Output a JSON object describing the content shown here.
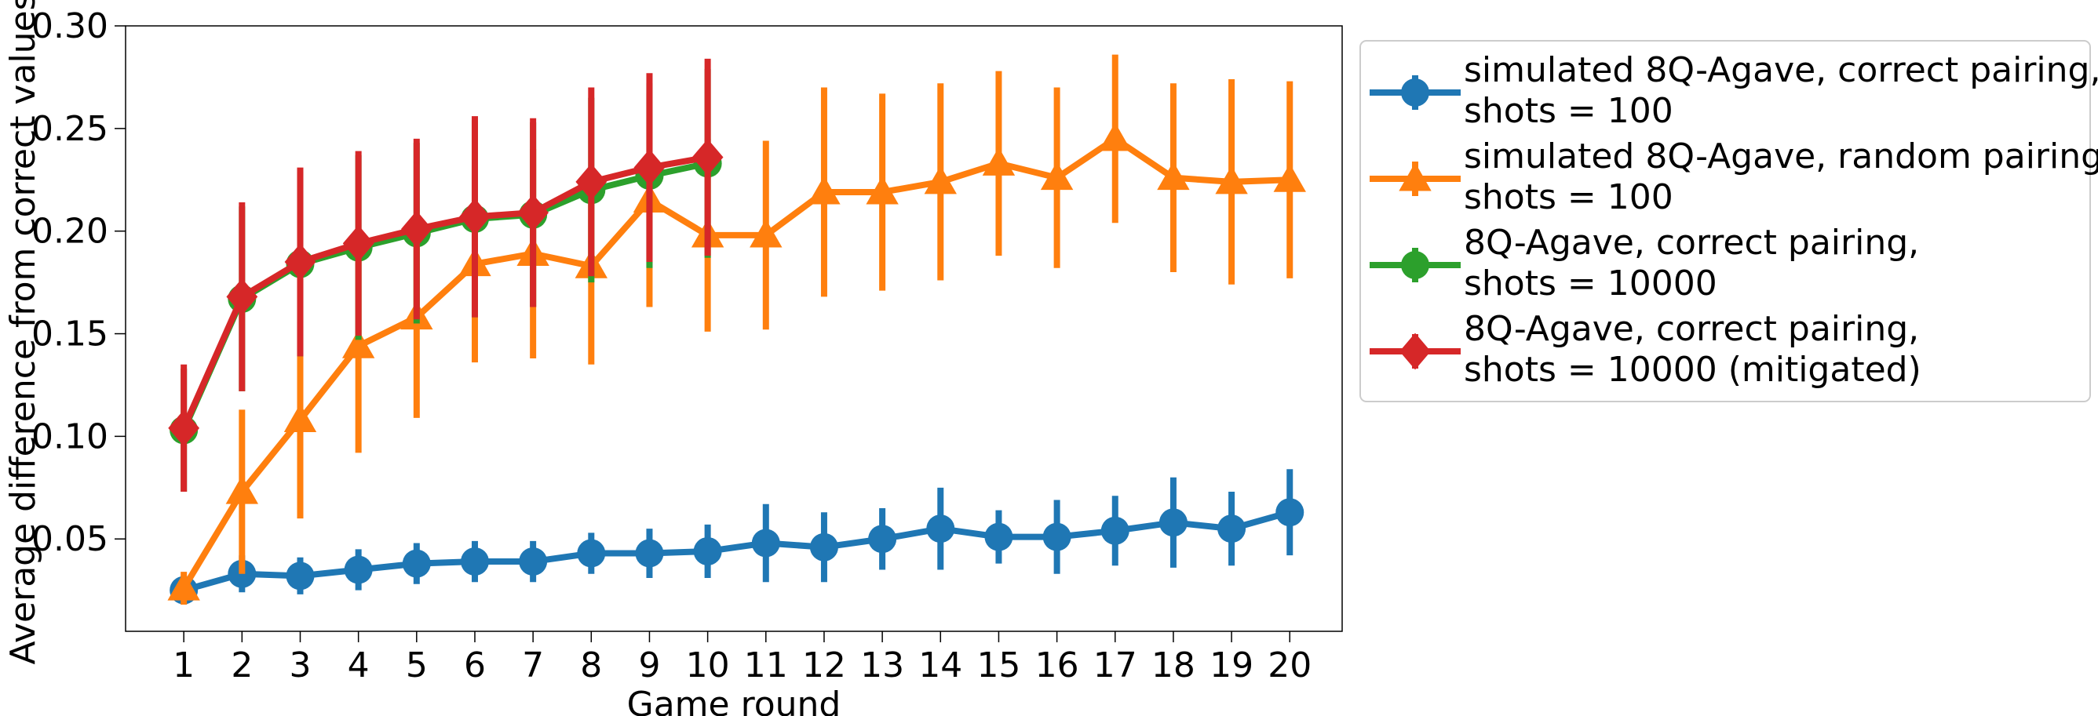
{
  "chart_data": {
    "type": "line",
    "xlabel": "Game round",
    "ylabel": "Average difference from correct values",
    "xlim": [
      0,
      20.9
    ],
    "ylim": [
      0.005,
      0.3
    ],
    "xticks": [
      1,
      2,
      3,
      4,
      5,
      6,
      7,
      8,
      9,
      10,
      11,
      12,
      13,
      14,
      15,
      16,
      17,
      18,
      19,
      20
    ],
    "xtick_labels": [
      "1",
      "2",
      "3",
      "4",
      "5",
      "6",
      "7",
      "8",
      "9",
      "10",
      "11",
      "12",
      "13",
      "14",
      "15",
      "16",
      "17",
      "18",
      "19",
      "20"
    ],
    "yticks": [
      0.05,
      0.1,
      0.15,
      0.2,
      0.25,
      0.3
    ],
    "ytick_labels": [
      "0.05",
      "0.10",
      "0.15",
      "0.20",
      "0.25",
      "0.30"
    ],
    "grid": false,
    "legend_position": "outside-right",
    "series": [
      {
        "name": "simulated 8Q-Agave, correct pairing, shots = 100",
        "legend_lines": [
          "simulated 8Q-Agave, correct pairing,",
          "shots = 100"
        ],
        "color": "#1f77b4",
        "marker": "circle",
        "x": [
          1,
          2,
          3,
          4,
          5,
          6,
          7,
          8,
          9,
          10,
          11,
          12,
          13,
          14,
          15,
          16,
          17,
          18,
          19,
          20
        ],
        "y": [
          0.025,
          0.033,
          0.032,
          0.035,
          0.038,
          0.039,
          0.039,
          0.043,
          0.043,
          0.044,
          0.048,
          0.046,
          0.05,
          0.055,
          0.051,
          0.051,
          0.054,
          0.058,
          0.055,
          0.063
        ],
        "yerr": [
          0.007,
          0.009,
          0.009,
          0.01,
          0.01,
          0.01,
          0.01,
          0.01,
          0.012,
          0.013,
          0.019,
          0.017,
          0.015,
          0.02,
          0.013,
          0.018,
          0.017,
          0.022,
          0.018,
          0.021
        ]
      },
      {
        "name": "simulated 8Q-Agave, random pairing, shots = 100",
        "legend_lines": [
          "simulated 8Q-Agave, random pairing,",
          "shots = 100"
        ],
        "color": "#ff7f0e",
        "marker": "triangle",
        "x": [
          1,
          2,
          3,
          4,
          5,
          6,
          7,
          8,
          9,
          10,
          11,
          12,
          13,
          14,
          15,
          16,
          17,
          18,
          19,
          20
        ],
        "y": [
          0.026,
          0.073,
          0.108,
          0.144,
          0.158,
          0.184,
          0.189,
          0.183,
          0.215,
          0.198,
          0.198,
          0.219,
          0.219,
          0.224,
          0.233,
          0.226,
          0.245,
          0.226,
          0.224,
          0.225
        ],
        "yerr": [
          0.008,
          0.04,
          0.048,
          0.052,
          0.049,
          0.048,
          0.051,
          0.048,
          0.052,
          0.047,
          0.046,
          0.051,
          0.048,
          0.048,
          0.045,
          0.044,
          0.041,
          0.046,
          0.05,
          0.048
        ]
      },
      {
        "name": "8Q-Agave, correct pairing, shots = 10000",
        "legend_lines": [
          "8Q-Agave, correct pairing,",
          "shots = 10000"
        ],
        "color": "#2ca02c",
        "marker": "circle",
        "x": [
          1,
          2,
          3,
          4,
          5,
          6,
          7,
          8,
          9,
          10
        ],
        "y": [
          0.103,
          0.167,
          0.184,
          0.192,
          0.199,
          0.206,
          0.208,
          0.22,
          0.227,
          0.233
        ],
        "yerr": [
          0.03,
          0.045,
          0.045,
          0.045,
          0.044,
          0.048,
          0.045,
          0.045,
          0.045,
          0.046
        ]
      },
      {
        "name": "8Q-Agave, correct pairing, shots = 10000 (mitigated)",
        "legend_lines": [
          "8Q-Agave, correct pairing,",
          "shots = 10000 (mitigated)"
        ],
        "color": "#d62728",
        "marker": "diamond",
        "x": [
          1,
          2,
          3,
          4,
          5,
          6,
          7,
          8,
          9,
          10
        ],
        "y": [
          0.104,
          0.168,
          0.185,
          0.194,
          0.201,
          0.207,
          0.209,
          0.224,
          0.231,
          0.236
        ],
        "yerr": [
          0.031,
          0.046,
          0.046,
          0.045,
          0.044,
          0.049,
          0.046,
          0.046,
          0.046,
          0.048
        ]
      }
    ]
  }
}
